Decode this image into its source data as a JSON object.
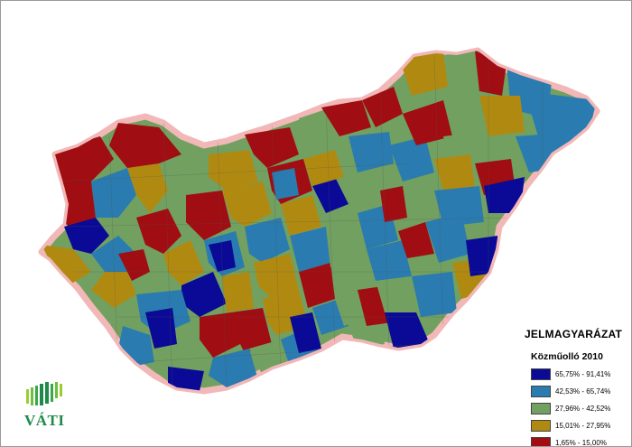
{
  "legend": {
    "title": "JELMAGYARÁZAT",
    "subtitle": "Közműolló 2010",
    "classes": [
      {
        "label": "65,75% - 91,41%",
        "color": "#0a0a96"
      },
      {
        "label": "42,53% - 65,74%",
        "color": "#2a7bb0"
      },
      {
        "label": "27,96% - 42,52%",
        "color": "#72a060"
      },
      {
        "label": "15,01% - 27,95%",
        "color": "#b08a10"
      },
      {
        "label": "1,65% - 15,00%",
        "color": "#a00d12"
      }
    ]
  },
  "logo": {
    "text": "VÁTI",
    "icon": "vati-bars-logo-icon",
    "color": "#1d8a4a"
  },
  "map": {
    "region": "Hungary",
    "border_color": "#e07a7a"
  }
}
